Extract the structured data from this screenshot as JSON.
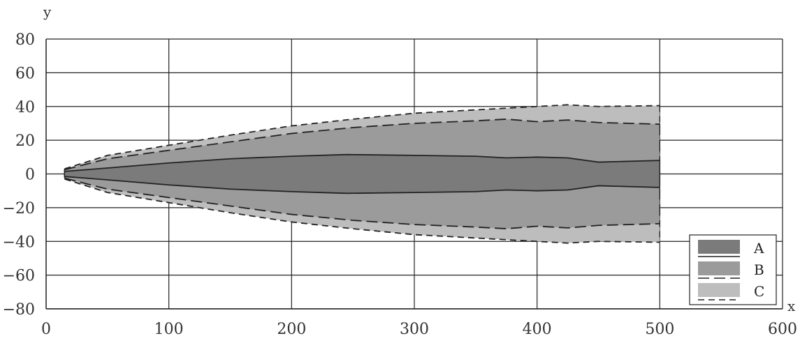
{
  "chart_data": {
    "type": "area",
    "xlabel": "x",
    "ylabel": "y",
    "xlim": [
      0,
      600
    ],
    "ylim": [
      -80,
      80
    ],
    "x_ticks": [
      "0",
      "100",
      "200",
      "300",
      "400",
      "500",
      "600"
    ],
    "y_ticks": [
      "80",
      "60",
      "40",
      "20",
      "0",
      "−20",
      "−40",
      "−60",
      "−80"
    ],
    "grid": true,
    "legend_position": "bottom-right",
    "series": [
      {
        "name": "C",
        "color": "#bdbdbd",
        "line": "short-dash",
        "x": [
          15,
          50,
          100,
          150,
          200,
          250,
          300,
          350,
          375,
          400,
          425,
          450,
          500
        ],
        "upper": [
          3,
          11,
          17,
          23,
          28.5,
          32.5,
          36,
          38,
          39,
          40,
          41,
          40,
          40.5
        ],
        "lower": [
          -3,
          -11,
          -17,
          -23,
          -28.5,
          -32.5,
          -36,
          -38,
          -39,
          -40,
          -41,
          -40,
          -40.5
        ]
      },
      {
        "name": "B",
        "color": "#9b9b9b",
        "line": "long-dash",
        "x": [
          15,
          50,
          100,
          150,
          200,
          250,
          300,
          350,
          375,
          400,
          425,
          450,
          500
        ],
        "upper": [
          2.5,
          9,
          14,
          19,
          24,
          27.5,
          30,
          31.5,
          32.5,
          31,
          32,
          30.5,
          29.5
        ],
        "lower": [
          -2.5,
          -9,
          -14,
          -19,
          -24,
          -27.5,
          -30,
          -31.5,
          -32.5,
          -31,
          -32,
          -30.5,
          -29.5
        ]
      },
      {
        "name": "A",
        "color": "#7b7b7b",
        "line": "solid",
        "x": [
          15,
          50,
          100,
          150,
          200,
          245,
          300,
          350,
          375,
          400,
          425,
          450,
          500
        ],
        "upper": [
          1.5,
          3.5,
          6.5,
          9,
          10.5,
          11.5,
          11,
          10.5,
          9.5,
          10,
          9.5,
          7,
          8
        ],
        "lower": [
          -1.5,
          -3.5,
          -6.5,
          -9,
          -10.5,
          -11.5,
          -11,
          -10.5,
          -9.5,
          -10,
          -9.5,
          -7,
          -8
        ]
      }
    ],
    "legend": [
      {
        "name": "A",
        "color": "#7b7b7b",
        "line": "solid"
      },
      {
        "name": "B",
        "color": "#9b9b9b",
        "line": "long-dash"
      },
      {
        "name": "C",
        "color": "#bdbdbd",
        "line": "short-dash"
      }
    ]
  }
}
